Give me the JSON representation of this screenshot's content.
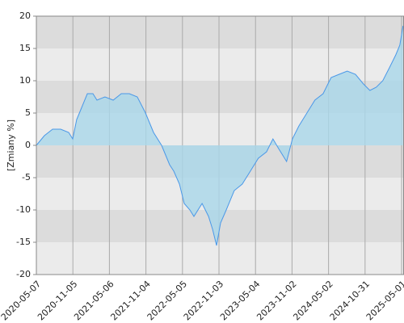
{
  "chart_data": {
    "type": "area",
    "y_label": "[Zmiany %]",
    "x": [
      "2020-05-07",
      "2020-06-16",
      "2020-07-27",
      "2020-09-05",
      "2020-10-15",
      "2020-11-04",
      "2020-11-24",
      "2020-12-14",
      "2021-01-16",
      "2021-02-13",
      "2021-03-05",
      "2021-04-14",
      "2021-05-25",
      "2021-07-04",
      "2021-08-13",
      "2021-09-22",
      "2021-11-02",
      "2021-12-12",
      "2022-01-21",
      "2022-03-02",
      "2022-03-23",
      "2022-04-20",
      "2022-05-14",
      "2022-06-11",
      "2022-07-01",
      "2022-08-11",
      "2022-09-12",
      "2022-10-02",
      "2022-10-22",
      "2022-11-11",
      "2022-12-09",
      "2023-01-18",
      "2023-02-27",
      "2023-04-08",
      "2023-05-18",
      "2023-06-28",
      "2023-07-30",
      "2023-08-27",
      "2023-10-06",
      "2023-11-04",
      "2023-12-06",
      "2024-01-15",
      "2024-02-24",
      "2024-04-05",
      "2024-05-15",
      "2024-06-24",
      "2024-08-03",
      "2024-09-13",
      "2024-10-23",
      "2024-11-24",
      "2024-12-26",
      "2025-01-27",
      "2025-03-01",
      "2025-04-02",
      "2025-04-22",
      "2025-05-08"
    ],
    "values": [
      0,
      1.5,
      2.5,
      2.5,
      2,
      1,
      4,
      5.5,
      8,
      8,
      7,
      7.5,
      7,
      8,
      8,
      7.5,
      5,
      2,
      0,
      -3,
      -4,
      -6,
      -9,
      -10,
      -11,
      -9,
      -11,
      -13,
      -15.5,
      -12,
      -10,
      -7,
      -6,
      -4,
      -2,
      -1,
      1,
      -0.5,
      -2.5,
      1,
      3,
      5,
      7,
      8,
      10.5,
      11,
      11.5,
      11,
      9.5,
      8.5,
      9,
      10,
      12,
      14,
      15.5,
      18.5
    ],
    "xlim": [
      "2020-05-07",
      "2025-05-13"
    ],
    "xticks": [
      "2020-05-07",
      "2020-11-05",
      "2021-05-06",
      "2021-11-04",
      "2022-05-05",
      "2022-11-03",
      "2023-05-04",
      "2023-11-02",
      "2024-05-02",
      "2024-10-31",
      "2025-05-01"
    ],
    "ylim": [
      -20,
      20
    ],
    "yticks": [
      -20,
      -15,
      -10,
      -5,
      0,
      5,
      10,
      15,
      20
    ],
    "color": "#4a98e8",
    "fill_color": "#a9d7ea",
    "band_colors": [
      "#ebebeb",
      "#dcdcdc"
    ],
    "grid": true
  }
}
